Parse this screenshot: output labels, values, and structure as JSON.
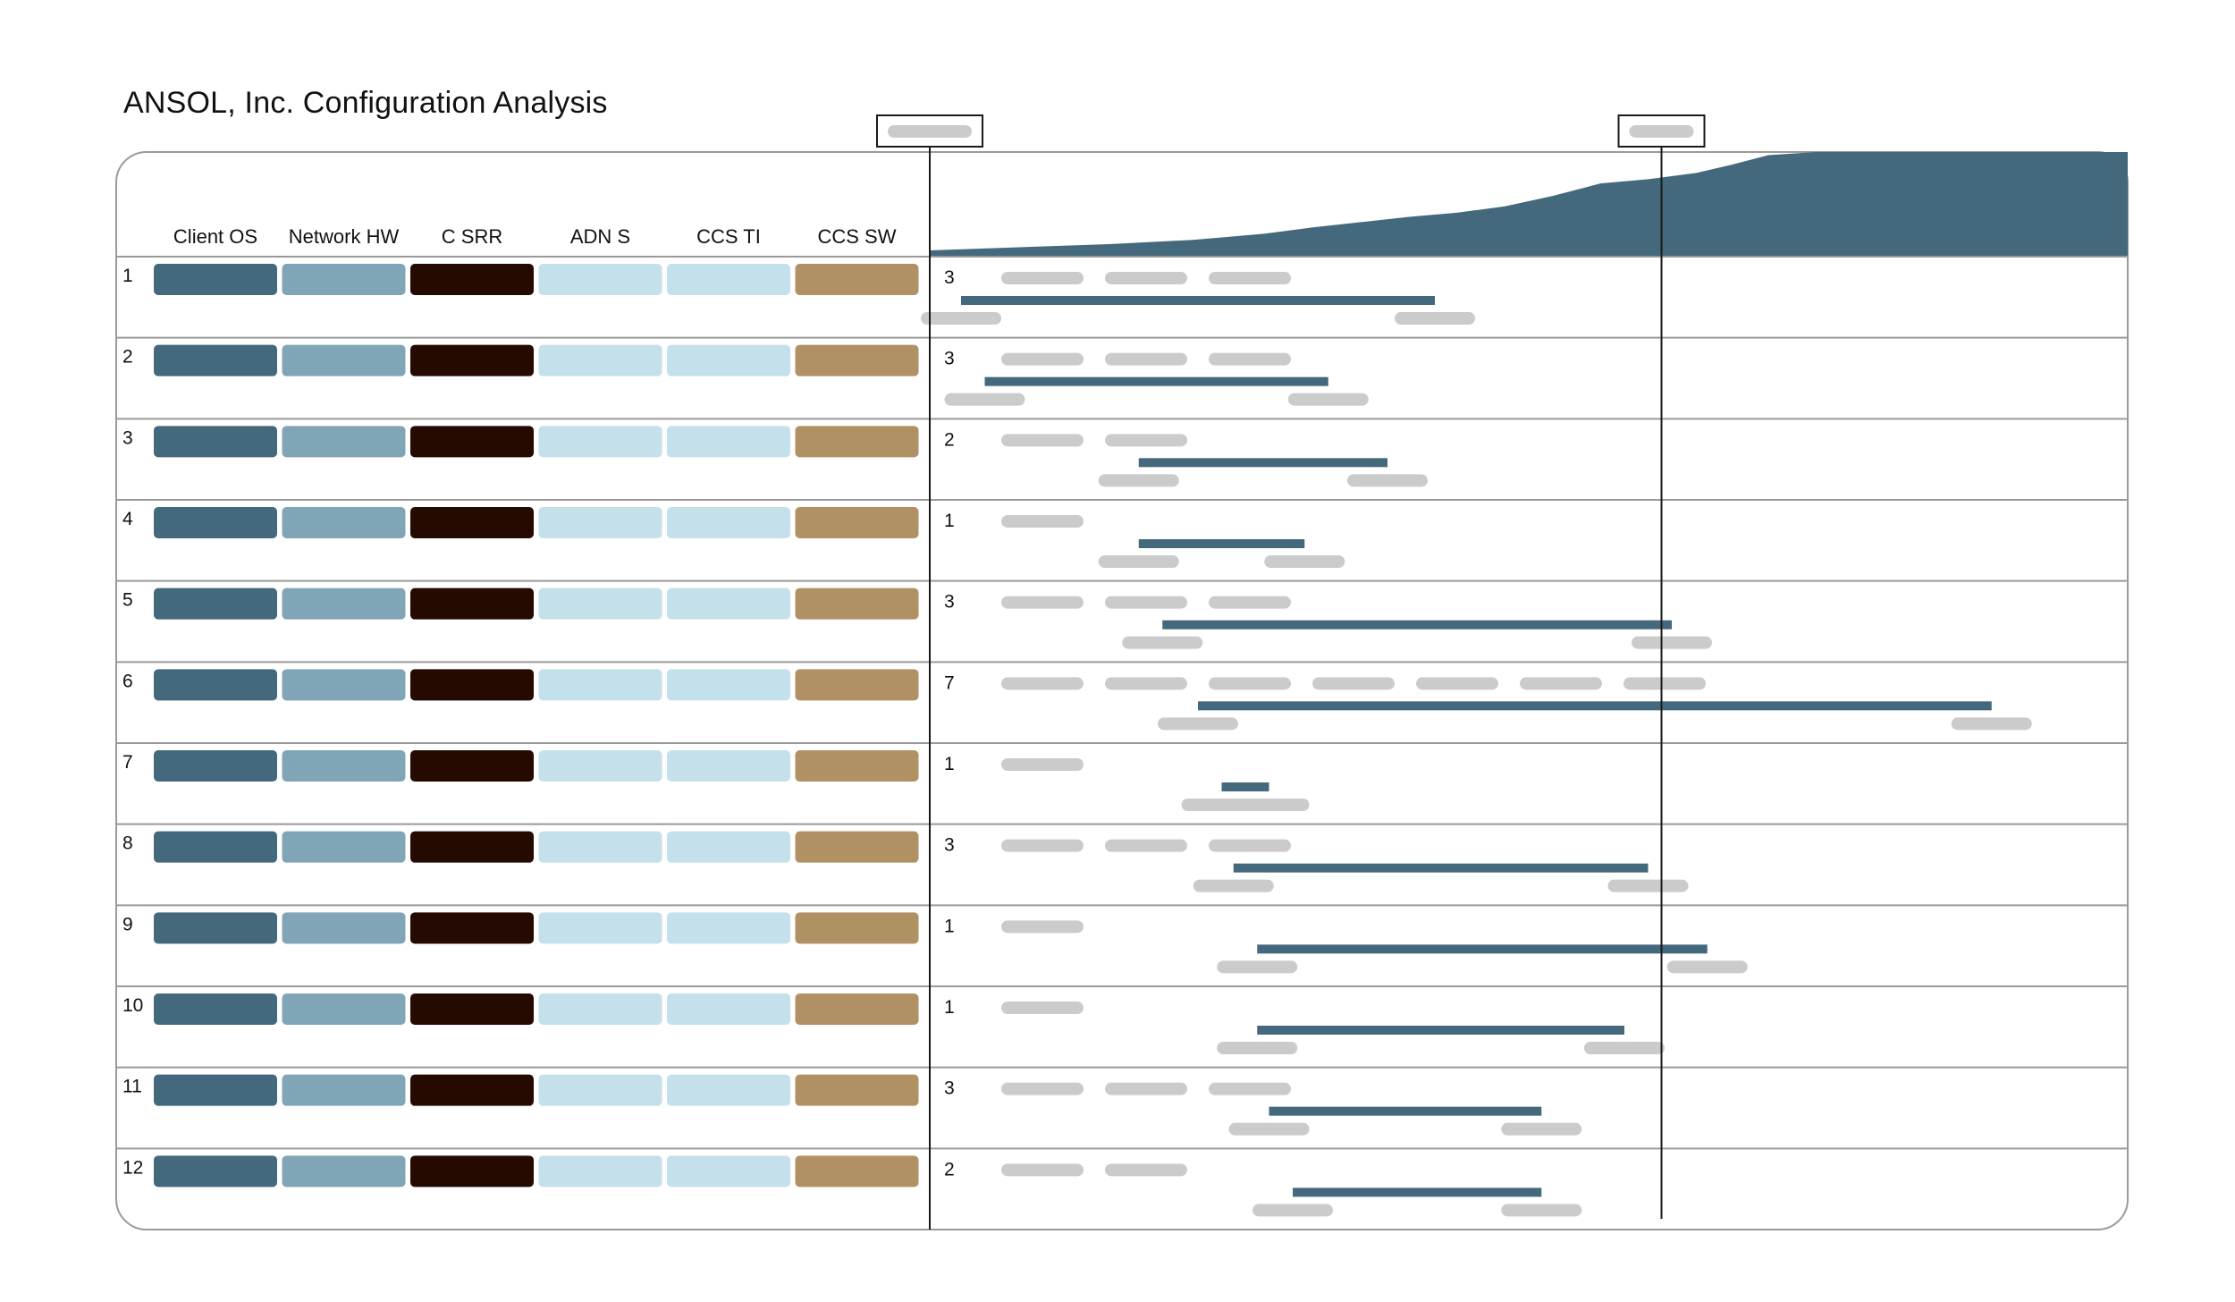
{
  "title": "ANSOL, Inc. Configuration Analysis",
  "colors": {
    "client_os": "#44687c",
    "network_hw": "#80a5b6",
    "c_srr": "#250a02",
    "adn_s": "#c4e0ea",
    "ccs_ti": "#c4e0ea",
    "ccs_sw": "#b09163",
    "bar": "#44687c",
    "placeholder": "#cbcbcb",
    "border": "#9a9a9a",
    "marker": "#1a1a1a"
  },
  "chart_data": {
    "type": "table",
    "columns": [
      "Client OS",
      "Network HW",
      "C SRR",
      "ADN S",
      "CCS TI",
      "CCS SW"
    ],
    "rows": [
      {
        "id": "1",
        "count": 3
      },
      {
        "id": "2",
        "count": 3
      },
      {
        "id": "3",
        "count": 2
      },
      {
        "id": "4",
        "count": 1
      },
      {
        "id": "5",
        "count": 3
      },
      {
        "id": "6",
        "count": 7
      },
      {
        "id": "7",
        "count": 1
      },
      {
        "id": "8",
        "count": 3
      },
      {
        "id": "9",
        "count": 1
      },
      {
        "id": "10",
        "count": 1
      },
      {
        "id": "11",
        "count": 3
      },
      {
        "id": "12",
        "count": 2
      }
    ],
    "timeline": [
      {
        "start": 0.0,
        "end": 0.4
      },
      {
        "start": 0.02,
        "end": 0.31
      },
      {
        "start": 0.15,
        "end": 0.36
      },
      {
        "start": 0.15,
        "end": 0.29
      },
      {
        "start": 0.17,
        "end": 0.6
      },
      {
        "start": 0.2,
        "end": 0.87
      },
      {
        "start": 0.22,
        "end": 0.26
      },
      {
        "start": 0.23,
        "end": 0.58
      },
      {
        "start": 0.25,
        "end": 0.63
      },
      {
        "start": 0.25,
        "end": 0.56
      },
      {
        "start": 0.26,
        "end": 0.49
      },
      {
        "start": 0.28,
        "end": 0.49
      }
    ],
    "markers": [
      0.0,
      0.58
    ],
    "area": [
      [
        0.0,
        0.06
      ],
      [
        0.15,
        0.12
      ],
      [
        0.22,
        0.16
      ],
      [
        0.28,
        0.22
      ],
      [
        0.32,
        0.28
      ],
      [
        0.36,
        0.33
      ],
      [
        0.4,
        0.38
      ],
      [
        0.44,
        0.42
      ],
      [
        0.48,
        0.48
      ],
      [
        0.52,
        0.58
      ],
      [
        0.56,
        0.7
      ],
      [
        0.6,
        0.74
      ],
      [
        0.64,
        0.8
      ],
      [
        0.67,
        0.88
      ],
      [
        0.7,
        0.97
      ],
      [
        0.74,
        1.0
      ],
      [
        1.0,
        1.0
      ]
    ]
  }
}
